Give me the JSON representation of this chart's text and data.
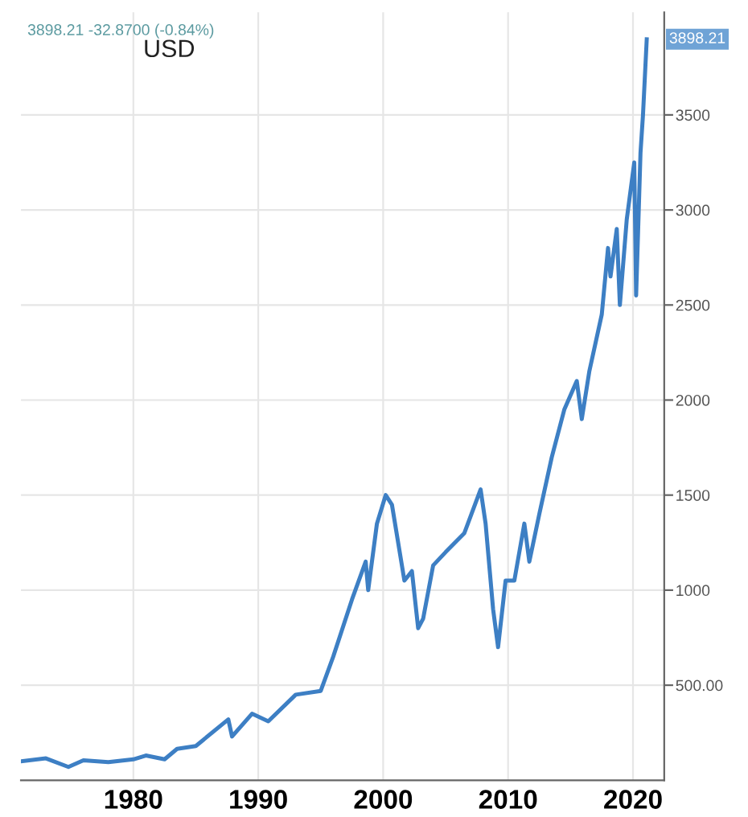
{
  "chart_data": {
    "type": "line",
    "title": "3898.21 -32.8700 (-0.84%)",
    "subtitle": "USD",
    "x": [
      1971.0,
      1973.0,
      1974.8,
      1976,
      1978,
      1980,
      1981,
      1982.5,
      1983.5,
      1985,
      1987.6,
      1987.9,
      1989.5,
      1990.8,
      1993,
      1995,
      1996,
      1997.5,
      1998.6,
      1998.8,
      1999.5,
      2000.2,
      2000.7,
      2001.7,
      2002.3,
      2002.8,
      2003.2,
      2004,
      2005,
      2006.5,
      2007.8,
      2008.2,
      2008.8,
      2009.2,
      2009.8,
      2010.5,
      2011.3,
      2011.7,
      2012.5,
      2013.5,
      2014.5,
      2015.5,
      2015.9,
      2016.5,
      2017.5,
      2018.0,
      2018.2,
      2018.7,
      2018.95,
      2019.5,
      2020.1,
      2020.25,
      2020.6,
      2020.8,
      2021.1
    ],
    "series": [
      {
        "color": "#3d7fc4",
        "values": [
          100,
          115,
          70,
          105,
          95,
          110,
          130,
          110,
          165,
          180,
          320,
          230,
          350,
          310,
          450,
          470,
          650,
          950,
          1150,
          1000,
          1350,
          1500,
          1450,
          1050,
          1100,
          800,
          850,
          1130,
          1200,
          1300,
          1530,
          1350,
          900,
          700,
          1050,
          1050,
          1350,
          1150,
          1400,
          1700,
          1950,
          2100,
          1900,
          2150,
          2450,
          2800,
          2650,
          2900,
          2500,
          2950,
          3250,
          2550,
          3300,
          3500,
          3898.21
        ]
      }
    ],
    "xlim": [
      1971,
      2022.5
    ],
    "xticks": [
      1980,
      1990,
      2000,
      2010,
      2020
    ],
    "ylim": [
      0,
      4040
    ],
    "yticks": [
      {
        "value": 500,
        "label": "500.00"
      },
      1000,
      1500,
      2000,
      2500,
      3000,
      3500
    ],
    "annotations": [
      {
        "text": "3898.21",
        "x": 2021.1,
        "y": 3898.21
      }
    ],
    "grid": true,
    "legend": false,
    "marker": "none",
    "line_style": "solid"
  }
}
